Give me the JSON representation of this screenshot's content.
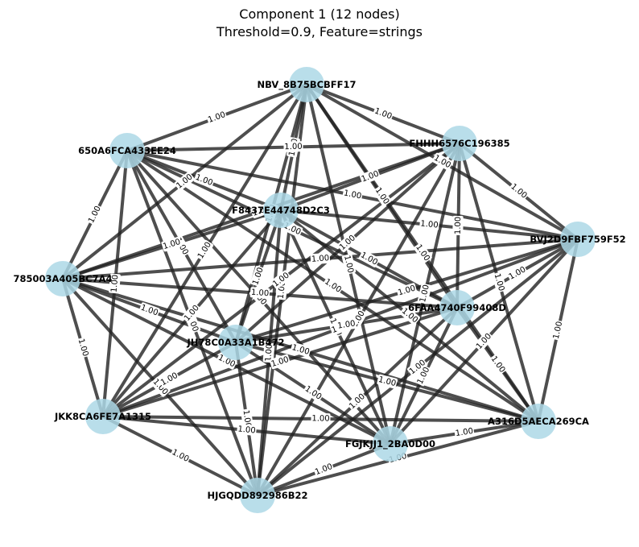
{
  "title": {
    "line1": "Component 1 (12 nodes)",
    "line2": "Threshold=0.9, Feature=strings"
  },
  "nodes": [
    {
      "id": "NBV_8B75BCBFF17"
    },
    {
      "id": "FHHH6576C196385"
    },
    {
      "id": "650A6FCA433EE24"
    },
    {
      "id": "F8437E44748D2C3"
    },
    {
      "id": "BVJ2D9FBF759F52"
    },
    {
      "id": "785003A405BC7A4"
    },
    {
      "id": "6FAA4740F99408D"
    },
    {
      "id": "JH78C0A33A1B472"
    },
    {
      "id": "JKK8CA6FE7A1315"
    },
    {
      "id": "A316D5AECA269CA"
    },
    {
      "id": "FGJKJJ1_2BA0D00"
    },
    {
      "id": "HJGQDD892986B22"
    }
  ],
  "edge_weight": "1.00",
  "colors": {
    "node_fill": "#add8e6",
    "edge": "#222222"
  }
}
